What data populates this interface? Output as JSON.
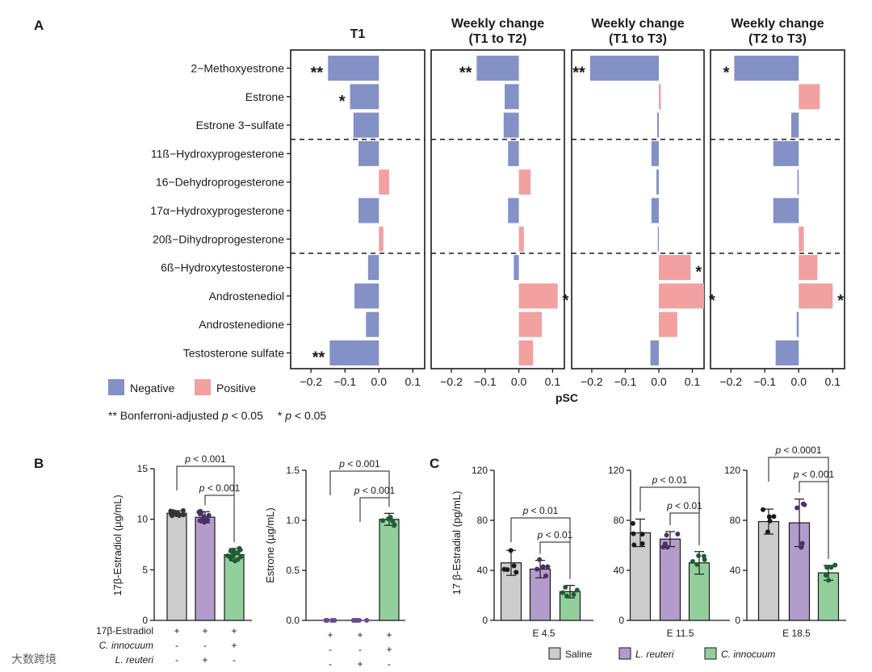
{
  "panel_labels": [
    "A",
    "B",
    "C"
  ],
  "colors": {
    "negative": "#8391c6",
    "positive": "#f2a0a0",
    "saline": "#cccccc",
    "reuteri": "#b39ccb",
    "innocuum": "#93cf9d",
    "ink": "#1a1a1a"
  },
  "chart_data": [
    {
      "id": "panelA",
      "type": "bar",
      "orientation": "horizontal",
      "xlabel": "pSC",
      "xlim": [
        -0.26,
        0.135
      ],
      "xticks": [
        -0.2,
        -0.1,
        0.0,
        0.1
      ],
      "xtick_labels": [
        "−0.2",
        "−0.1",
        "0.0",
        "0.1"
      ],
      "categories": [
        "2−Methoxyestrone",
        "Estrone",
        "Estrone 3−sulfate",
        "11ß−Hydroxyprogesterone",
        "16−Dehydroprogesterone",
        "17α−Hydroxyprogesterone",
        "20ß−Dihydroprogesterone",
        "6ß−Hydroxytestosterone",
        "Androstenediol",
        "Androstenedione",
        "Testosterone sulfate"
      ],
      "group_separators_after": [
        2,
        6
      ],
      "series": [
        {
          "title": "T1",
          "values": [
            -0.15,
            -0.085,
            -0.075,
            -0.06,
            0.03,
            -0.06,
            0.013,
            -0.032,
            -0.072,
            -0.038,
            -0.145
          ],
          "stars": [
            "**",
            "*",
            "",
            "",
            "",
            "",
            "",
            "",
            "",
            "",
            "**"
          ]
        },
        {
          "title": "Weekly change\n(T1 to T2)",
          "values": [
            -0.125,
            -0.042,
            -0.045,
            -0.032,
            0.035,
            -0.032,
            0.015,
            -0.015,
            0.115,
            0.068,
            0.042
          ],
          "stars": [
            "**",
            "",
            "",
            "",
            "",
            "",
            "",
            "",
            "*",
            "",
            ""
          ]
        },
        {
          "title": "Weekly change\n(T1 to T3)",
          "values": [
            -0.205,
            0.006,
            -0.005,
            -0.022,
            -0.007,
            -0.022,
            -0.003,
            0.095,
            0.135,
            0.055,
            -0.025
          ],
          "stars": [
            "**",
            "",
            "",
            "",
            "",
            "",
            "",
            "*",
            "*",
            "",
            ""
          ]
        },
        {
          "title": "Weekly change\n(T2 to T3)",
          "values": [
            -0.19,
            0.062,
            -0.022,
            -0.075,
            -0.004,
            -0.075,
            0.015,
            0.055,
            0.1,
            -0.006,
            -0.068
          ],
          "stars": [
            "*",
            "",
            "",
            "",
            "",
            "",
            "",
            "",
            "*",
            "",
            ""
          ]
        }
      ],
      "legend": {
        "items": [
          {
            "label": "Negative",
            "color": "#8391c6"
          },
          {
            "label": "Positive",
            "color": "#f2a0a0"
          }
        ],
        "placement": "bottom-left"
      },
      "significance_note": {
        "double_star": "**",
        "double_label": "Bonferroni-adjusted",
        "single_star": "*",
        "p_symbol": "p",
        "threshold": "< 0.05"
      }
    },
    {
      "id": "panelB1",
      "type": "bar",
      "ylabel": "17β-Estradiol (µg/mL)",
      "ylim": [
        0,
        15
      ],
      "yticks": [
        0,
        5,
        10,
        15
      ],
      "ytick_labels": [
        "0",
        "5",
        "10",
        "15"
      ],
      "values": [
        10.6,
        10.2,
        6.5
      ],
      "errors": [
        0.25,
        0.55,
        0.6
      ],
      "group_colors": [
        "#cccccc",
        "#b39ccb",
        "#93cf9d"
      ],
      "brackets": [
        {
          "from": 0,
          "to": 2,
          "label": "p < 0.001"
        },
        {
          "from": 1,
          "to": 2,
          "label": "p < 0.001"
        }
      ]
    },
    {
      "id": "panelB2",
      "type": "bar",
      "ylabel": "Estrone (µg/mL)",
      "ylim": [
        0,
        1.5
      ],
      "yticks": [
        0,
        0.5,
        1.0,
        1.5
      ],
      "ytick_labels": [
        "0.0",
        "0.5",
        "1.0",
        "1.5"
      ],
      "values": [
        0.0,
        0.0,
        1.01
      ],
      "errors": [
        0,
        0,
        0.06
      ],
      "group_colors": [
        "#cccccc",
        "#b39ccb",
        "#93cf9d"
      ],
      "brackets": [
        {
          "from": 0,
          "to": 2,
          "label": "p < 0.001"
        },
        {
          "from": 1,
          "to": 2,
          "label": "p < 0.001"
        }
      ]
    },
    {
      "id": "panelC",
      "type": "bar",
      "ylabel": "17 β-Estradial (pg/mL)",
      "ylim": [
        0,
        120
      ],
      "yticks": [
        0,
        40,
        80,
        120
      ],
      "ytick_labels": [
        "0",
        "40",
        "80",
        "120"
      ],
      "series_names": [
        "Saline",
        "L. reuteri",
        "C. innocuum"
      ],
      "groups": [
        {
          "label": "E 4.5",
          "values": [
            46,
            41,
            23
          ],
          "errors": [
            10,
            7,
            5
          ],
          "brackets": [
            {
              "from": 0,
              "to": 2,
              "label": "p < 0.01"
            },
            {
              "from": 1,
              "to": 2,
              "label": "p < 0.01"
            }
          ]
        },
        {
          "label": "E 11.5",
          "values": [
            70,
            65,
            46
          ],
          "errors": [
            11,
            6,
            9
          ],
          "brackets": [
            {
              "from": 0,
              "to": 2,
              "label": "p < 0.01"
            },
            {
              "from": 1,
              "to": 2,
              "label": "p < 0.01"
            }
          ]
        },
        {
          "label": "E 18.5",
          "values": [
            79,
            78,
            38
          ],
          "errors": [
            10,
            19,
            6
          ],
          "brackets": [
            {
              "from": 0,
              "to": 2,
              "label": "p < 0.0001"
            },
            {
              "from": 1,
              "to": 2,
              "label": "p < 0.001"
            }
          ]
        }
      ],
      "legend": {
        "items": [
          {
            "label": "Saline",
            "color": "#cccccc"
          },
          {
            "label": "L. reuteri",
            "color": "#b39ccb"
          },
          {
            "label": "C. innocuum",
            "color": "#93cf9d"
          }
        ],
        "placement": "bottom"
      }
    }
  ],
  "treatment_table": {
    "row_labels": [
      "17β-Estradiol",
      "C. innocuum",
      "L. reuteri"
    ],
    "rows": [
      [
        "+",
        "+",
        "+"
      ],
      [
        "-",
        "-",
        "+"
      ],
      [
        "-",
        "+",
        "-"
      ]
    ]
  },
  "watermark": "大数跨境"
}
